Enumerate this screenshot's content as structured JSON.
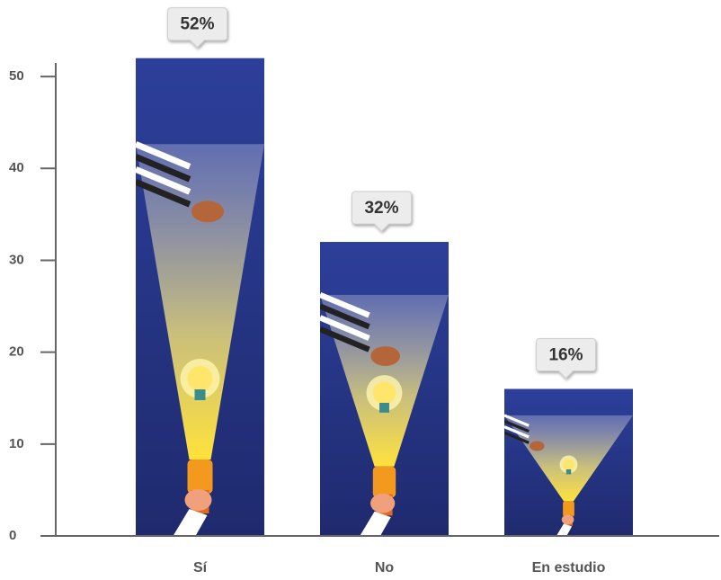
{
  "chart_data": {
    "type": "bar",
    "categories": [
      "Sí",
      "No",
      "En estudio"
    ],
    "values": [
      52,
      32,
      16
    ],
    "value_labels": [
      "52%",
      "32%",
      "16%"
    ],
    "ylim": [
      0,
      55
    ],
    "yticks": [
      0,
      10,
      20,
      30,
      40,
      50
    ],
    "color": "#2b3a8c"
  }
}
